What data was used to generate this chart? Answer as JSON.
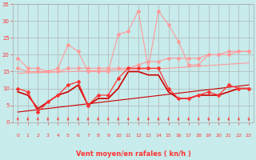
{
  "x": [
    0,
    1,
    2,
    3,
    4,
    5,
    6,
    7,
    8,
    9,
    10,
    11,
    12,
    13,
    14,
    15,
    16,
    17,
    18,
    19,
    20,
    21,
    22,
    23
  ],
  "series": [
    {
      "name": "rafales_light",
      "color": "#FF9999",
      "linewidth": 0.8,
      "marker": "D",
      "markersize": 2.0,
      "values": [
        19,
        16,
        16,
        15,
        16,
        23,
        21,
        15,
        15,
        15,
        26,
        27,
        33,
        16,
        33,
        29,
        24,
        17,
        17,
        20,
        20,
        21,
        21,
        21
      ]
    },
    {
      "name": "moyenne_light",
      "color": "#FF9999",
      "linewidth": 0.8,
      "marker": "D",
      "markersize": 2.0,
      "values": [
        16,
        15,
        15,
        15,
        15,
        16,
        16,
        16,
        16,
        16,
        16,
        16,
        17,
        18,
        18,
        19,
        19,
        19,
        19,
        20,
        20,
        20,
        21,
        21
      ]
    },
    {
      "name": "vent_dark1",
      "color": "#FF3333",
      "linewidth": 0.9,
      "marker": "D",
      "markersize": 2.0,
      "values": [
        10,
        9,
        3,
        6,
        8,
        11,
        12,
        5,
        8,
        8,
        13,
        16,
        16,
        16,
        16,
        10,
        7,
        7,
        8,
        9,
        8,
        11,
        10,
        10
      ]
    },
    {
      "name": "vent_dark2",
      "color": "#CC0000",
      "linewidth": 1.2,
      "marker": null,
      "markersize": 0,
      "values": [
        9,
        8,
        4,
        6,
        8,
        9,
        11,
        5,
        7,
        7,
        10,
        15,
        15,
        14,
        14,
        9,
        7,
        7,
        8,
        8,
        8,
        9,
        10,
        10
      ]
    },
    {
      "name": "trend_dark",
      "color": "#CC0000",
      "linewidth": 0.8,
      "marker": null,
      "markersize": 0,
      "values": [
        3.0,
        3.35,
        3.7,
        4.05,
        4.4,
        4.75,
        5.1,
        5.45,
        5.8,
        6.15,
        6.5,
        6.85,
        7.2,
        7.55,
        7.9,
        8.25,
        8.6,
        8.95,
        9.3,
        9.65,
        10.0,
        10.35,
        10.7,
        11.05
      ]
    },
    {
      "name": "trend_light",
      "color": "#FF9999",
      "linewidth": 0.8,
      "marker": null,
      "markersize": 0,
      "values": [
        14.5,
        14.6,
        14.7,
        14.8,
        14.9,
        15.0,
        15.1,
        15.2,
        15.3,
        15.4,
        15.5,
        15.6,
        15.7,
        15.8,
        15.9,
        16.0,
        16.2,
        16.4,
        16.6,
        16.8,
        17.0,
        17.2,
        17.4,
        17.6
      ]
    }
  ],
  "xlabel": "Vent moyen/en rafales ( kn/h )",
  "ylim": [
    0,
    35
  ],
  "xlim": [
    -0.5,
    23.5
  ],
  "yticks": [
    0,
    5,
    10,
    15,
    20,
    25,
    30,
    35
  ],
  "xticks": [
    0,
    1,
    2,
    3,
    4,
    5,
    6,
    7,
    8,
    9,
    10,
    11,
    12,
    13,
    14,
    15,
    16,
    17,
    18,
    19,
    20,
    21,
    22,
    23
  ],
  "bg_color": "#C8EBEB",
  "grid_color": "#AAAAAA",
  "tick_color": "#FF3333",
  "label_color": "#FF3333"
}
